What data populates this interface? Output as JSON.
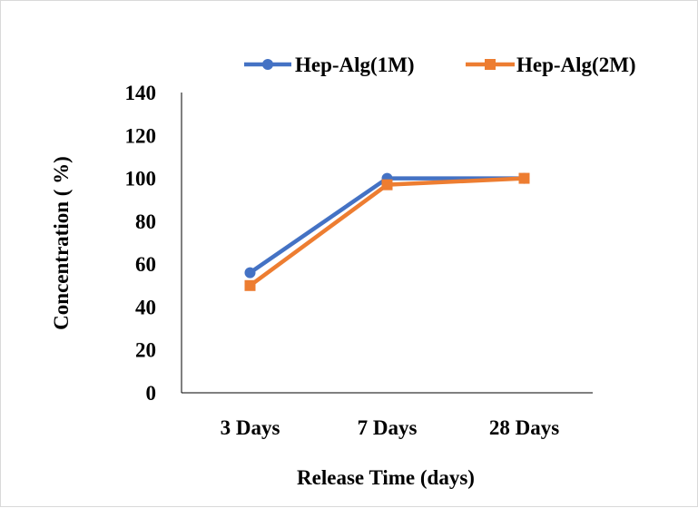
{
  "chart_data": {
    "type": "line",
    "categories": [
      "3 Days",
      "7 Days",
      "28 Days"
    ],
    "series": [
      {
        "name": "Hep-Alg(1M)",
        "values": [
          56,
          100,
          100
        ],
        "color": "#4472c4",
        "marker": "circle"
      },
      {
        "name": "Hep-Alg(2M)",
        "values": [
          50,
          97,
          100
        ],
        "color": "#ed7d31",
        "marker": "square"
      }
    ],
    "xlabel": "Release Time (days)",
    "ylabel": "Concentration ( %)",
    "ylim": [
      0,
      140
    ],
    "yticks": [
      0,
      20,
      40,
      60,
      80,
      100,
      120,
      140
    ],
    "grid": false,
    "legend": "top"
  }
}
